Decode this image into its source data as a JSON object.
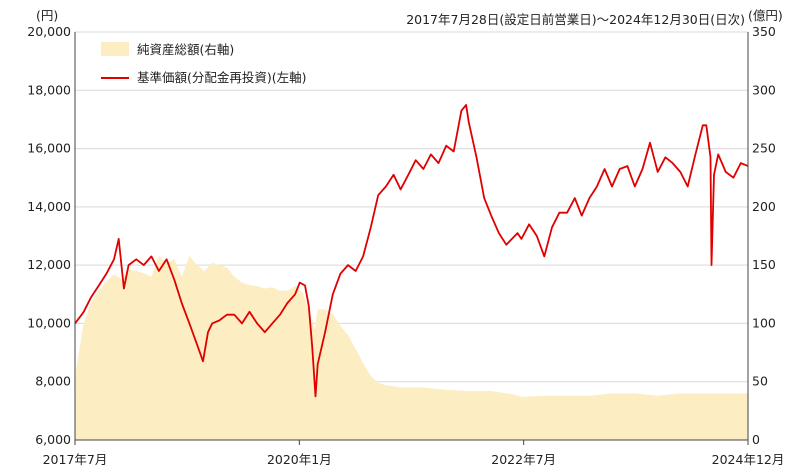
{
  "chart_data": {
    "type": "line",
    "title": "2017年7月28日(設定日前営業日)～2024年12月30日(日次)",
    "y_left": {
      "unit": "(円)",
      "range": [
        6000,
        20000
      ],
      "ticks": [
        "6,000",
        "8,000",
        "10,000",
        "12,000",
        "14,000",
        "16,000",
        "18,000",
        "20,000"
      ]
    },
    "y_right": {
      "unit": "(億円)",
      "range": [
        0,
        350
      ],
      "ticks": [
        "0",
        "50",
        "100",
        "150",
        "200",
        "250",
        "300",
        "350"
      ]
    },
    "x_ticks": [
      "2017年7月",
      "2020年1月",
      "2022年7月",
      "2024年12月"
    ],
    "x_range": [
      "2017-07-28",
      "2024-12-30"
    ],
    "grid": true,
    "legend_position": "top-left",
    "colors": {
      "aum": "#fdedc3",
      "nav": "#e00000",
      "grid": "#d9d9d9"
    },
    "series": [
      {
        "name": "純資産総額(右軸)",
        "type": "area",
        "axis": "right",
        "x": [
          "2017-07-28",
          "2017-08-01",
          "2017-09-01",
          "2017-10-01",
          "2017-11-01",
          "2017-12-01",
          "2018-01-01",
          "2018-02-01",
          "2018-03-01",
          "2018-04-01",
          "2018-05-01",
          "2018-06-01",
          "2018-07-01",
          "2018-08-01",
          "2018-09-01",
          "2018-10-01",
          "2018-11-01",
          "2018-12-01",
          "2019-01-01",
          "2019-02-01",
          "2019-03-01",
          "2019-04-01",
          "2019-05-01",
          "2019-06-01",
          "2019-07-01",
          "2019-08-01",
          "2019-09-01",
          "2019-10-01",
          "2019-11-01",
          "2019-12-01",
          "2020-01-01",
          "2020-02-01",
          "2020-03-01",
          "2020-03-20",
          "2020-04-01",
          "2020-05-01",
          "2020-06-01",
          "2020-07-01",
          "2020-08-01",
          "2020-09-01",
          "2020-10-01",
          "2020-11-01",
          "2020-12-01",
          "2021-01-01",
          "2021-03-01",
          "2021-06-01",
          "2021-09-01",
          "2021-12-01",
          "2022-03-01",
          "2022-06-01",
          "2022-07-01",
          "2022-10-01",
          "2023-01-01",
          "2023-04-01",
          "2023-07-01",
          "2023-10-01",
          "2024-01-01",
          "2024-04-01",
          "2024-07-01",
          "2024-10-01",
          "2024-12-30"
        ],
        "values": [
          5,
          60,
          100,
          118,
          128,
          136,
          142,
          138,
          146,
          145,
          143,
          140,
          158,
          152,
          155,
          140,
          158,
          150,
          145,
          152,
          150,
          148,
          140,
          135,
          133,
          132,
          130,
          131,
          128,
          128,
          132,
          126,
          110,
          95,
          112,
          112,
          108,
          98,
          90,
          78,
          66,
          55,
          49,
          47,
          45,
          45,
          43,
          42,
          42,
          39,
          37,
          38,
          38,
          38,
          40,
          40,
          38,
          40,
          40,
          40,
          40
        ]
      },
      {
        "name": "基準価額(分配金再投資)(左軸)",
        "type": "line",
        "axis": "left",
        "x": [
          "2017-07-28",
          "2017-08-15",
          "2017-09-01",
          "2017-10-01",
          "2017-11-01",
          "2017-12-01",
          "2018-01-01",
          "2018-01-20",
          "2018-02-10",
          "2018-03-01",
          "2018-04-01",
          "2018-05-01",
          "2018-06-01",
          "2018-07-01",
          "2018-08-01",
          "2018-09-01",
          "2018-10-01",
          "2018-11-01",
          "2018-12-01",
          "2018-12-26",
          "2019-01-15",
          "2019-02-01",
          "2019-03-01",
          "2019-04-01",
          "2019-05-01",
          "2019-06-01",
          "2019-07-01",
          "2019-08-01",
          "2019-09-01",
          "2019-10-01",
          "2019-11-01",
          "2019-12-01",
          "2020-01-01",
          "2020-01-20",
          "2020-02-10",
          "2020-02-25",
          "2020-03-10",
          "2020-03-23",
          "2020-04-01",
          "2020-05-01",
          "2020-06-01",
          "2020-07-01",
          "2020-08-01",
          "2020-09-01",
          "2020-10-01",
          "2020-11-01",
          "2020-12-01",
          "2021-01-01",
          "2021-02-01",
          "2021-03-01",
          "2021-04-01",
          "2021-05-01",
          "2021-06-01",
          "2021-07-01",
          "2021-08-01",
          "2021-09-01",
          "2021-10-01",
          "2021-11-01",
          "2021-11-20",
          "2021-12-01",
          "2022-01-01",
          "2022-02-01",
          "2022-03-01",
          "2022-04-01",
          "2022-05-01",
          "2022-06-15",
          "2022-07-01",
          "2022-08-01",
          "2022-09-01",
          "2022-10-01",
          "2022-11-01",
          "2022-12-01",
          "2023-01-01",
          "2023-02-01",
          "2023-03-01",
          "2023-04-01",
          "2023-05-01",
          "2023-06-01",
          "2023-07-01",
          "2023-08-01",
          "2023-09-01",
          "2023-10-01",
          "2023-11-01",
          "2023-12-01",
          "2024-01-01",
          "2024-02-01",
          "2024-03-01",
          "2024-04-01",
          "2024-05-01",
          "2024-06-01",
          "2024-07-01",
          "2024-07-15",
          "2024-08-01",
          "2024-08-05",
          "2024-08-15",
          "2024-09-01",
          "2024-10-01",
          "2024-11-01",
          "2024-12-01",
          "2024-12-30"
        ],
        "values": [
          10000,
          10200,
          10400,
          10900,
          11300,
          11700,
          12200,
          12900,
          11200,
          12000,
          12200,
          12000,
          12300,
          11800,
          12200,
          11500,
          10700,
          10000,
          9300,
          8700,
          9700,
          10000,
          10100,
          10300,
          10300,
          10000,
          10400,
          10000,
          9700,
          10000,
          10300,
          10700,
          11000,
          11400,
          11300,
          10600,
          9200,
          7500,
          8600,
          9700,
          11000,
          11700,
          12000,
          11800,
          12300,
          13300,
          14400,
          14700,
          15100,
          14600,
          15100,
          15600,
          15300,
          15800,
          15500,
          16100,
          15900,
          17300,
          17500,
          16900,
          15700,
          14300,
          13700,
          13100,
          12700,
          13100,
          12900,
          13400,
          13000,
          12300,
          13300,
          13800,
          13800,
          14300,
          13700,
          14300,
          14700,
          15300,
          14700,
          15300,
          15400,
          14700,
          15300,
          16200,
          15200,
          15700,
          15500,
          15200,
          14700,
          15800,
          16800,
          16800,
          15700,
          12000,
          15100,
          15800,
          15200,
          15000,
          15500,
          15400
        ]
      }
    ]
  }
}
